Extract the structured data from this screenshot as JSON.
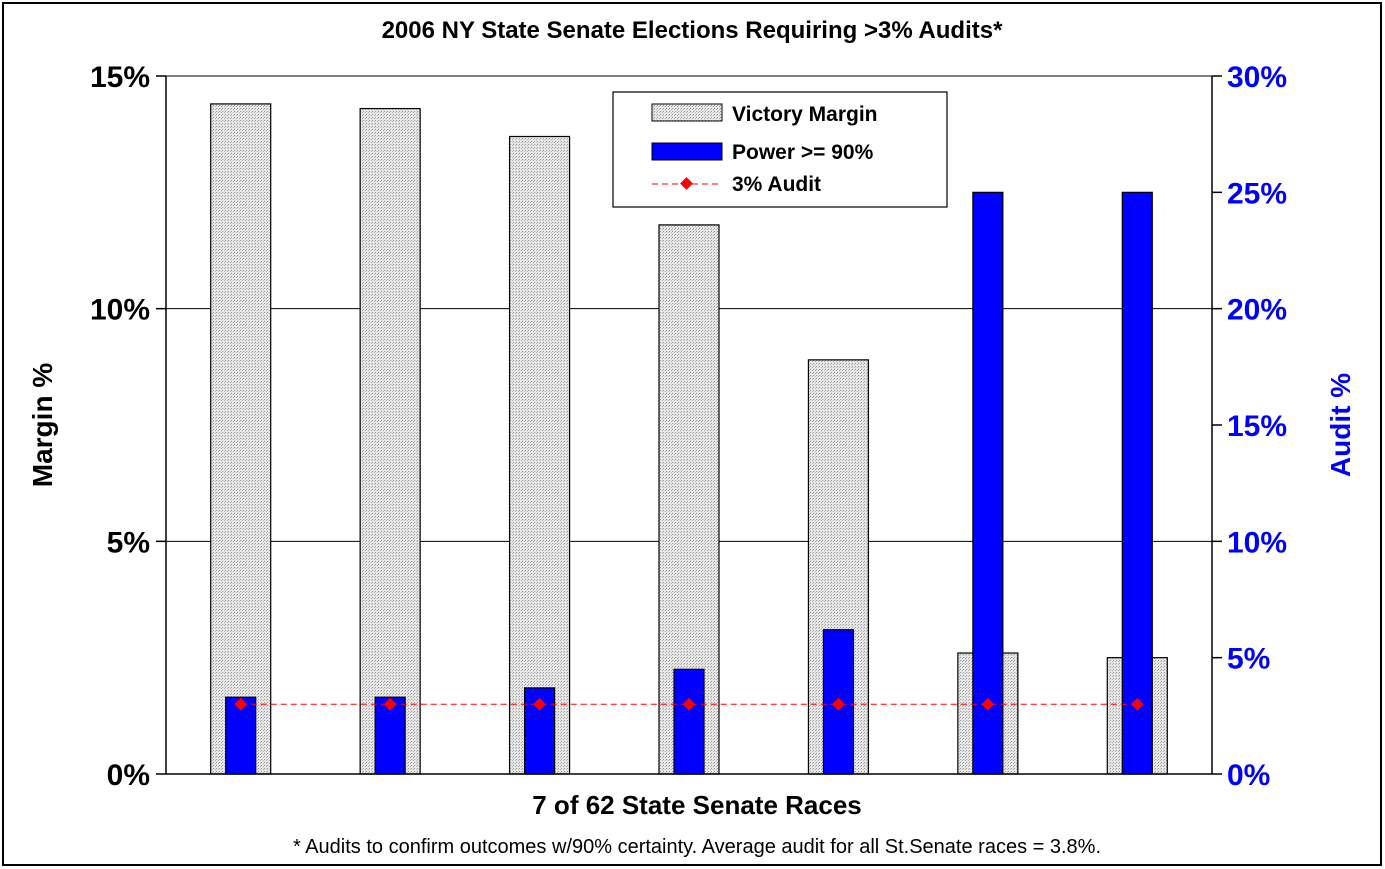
{
  "colors": {
    "victory_bar": "#d9d9d9",
    "power_bar": "#0000ff",
    "audit_line": "#ff0000",
    "right_axis": "#0000ff"
  },
  "chart_data": {
    "type": "bar",
    "title": "2006 NY State Senate Elections Requiring >3% Audits*",
    "xlabel": "7 of 62 State Senate Races",
    "ylabel_left": "Margin %",
    "ylabel_right": "Audit %",
    "footnote": "* Audits to confirm outcomes w/90% certainty. Average audit for all St.Senate races = 3.8%.",
    "left_axis": {
      "min": 0,
      "max": 15,
      "ticks": [
        0,
        5,
        10,
        15
      ],
      "tick_labels": [
        "0%",
        "5%",
        "10%",
        "15%"
      ]
    },
    "right_axis": {
      "min": 0,
      "max": 30,
      "ticks": [
        0,
        5,
        10,
        15,
        20,
        25,
        30
      ],
      "tick_labels": [
        "0%",
        "5%",
        "10%",
        "15%",
        "20%",
        "25%",
        "30%"
      ]
    },
    "grid": true,
    "legend_position": "top-right",
    "category_count": 7,
    "series": [
      {
        "name": "Victory Margin",
        "axis": "left",
        "type": "bar",
        "values": [
          14.4,
          14.3,
          13.7,
          11.8,
          8.9,
          2.6,
          2.5
        ]
      },
      {
        "name": "Power >= 90%",
        "axis": "right",
        "type": "bar",
        "values": [
          3.3,
          3.3,
          3.7,
          4.5,
          6.2,
          25.0,
          25.0
        ]
      },
      {
        "name": "3% Audit",
        "axis": "right",
        "type": "line",
        "values": [
          3,
          3,
          3,
          3,
          3,
          3,
          3
        ]
      }
    ]
  }
}
